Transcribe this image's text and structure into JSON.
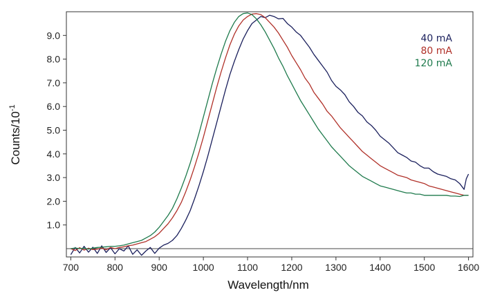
{
  "chart_data": {
    "type": "line",
    "xlabel": "Wavelength/nm",
    "ylabel_base": "Counts/10",
    "ylabel_exponent": "-1",
    "xlim": [
      690,
      1610
    ],
    "ylim": [
      -0.35,
      10.0
    ],
    "baseline": 0.0,
    "xticks": [
      700,
      800,
      900,
      1000,
      1100,
      1200,
      1300,
      1400,
      1500,
      1600
    ],
    "xtick_labels": [
      "700",
      "800",
      "900",
      "1000",
      "1100",
      "1200",
      "1300",
      "1400",
      "1500",
      "1600"
    ],
    "yticks": [
      1,
      2,
      3,
      4,
      5,
      6,
      7,
      8,
      9
    ],
    "ytick_labels": [
      "1.0",
      "2.0",
      "3.0",
      "4.0",
      "5.0",
      "6.0",
      "7.0",
      "8.0",
      "9.0"
    ],
    "grid": false,
    "legend_position": "top-right",
    "series": [
      {
        "name": "40 mA",
        "color": "#1a1f5c",
        "x": [
          700,
          710,
          720,
          730,
          740,
          750,
          760,
          770,
          780,
          790,
          800,
          810,
          820,
          830,
          840,
          850,
          860,
          870,
          880,
          890,
          900,
          910,
          920,
          930,
          940,
          950,
          960,
          970,
          980,
          990,
          1000,
          1010,
          1020,
          1030,
          1040,
          1050,
          1060,
          1070,
          1080,
          1090,
          1100,
          1110,
          1120,
          1130,
          1140,
          1150,
          1160,
          1170,
          1180,
          1190,
          1200,
          1210,
          1220,
          1230,
          1240,
          1250,
          1260,
          1270,
          1280,
          1290,
          1300,
          1310,
          1320,
          1330,
          1340,
          1350,
          1360,
          1370,
          1380,
          1390,
          1400,
          1410,
          1420,
          1430,
          1440,
          1450,
          1460,
          1470,
          1480,
          1490,
          1500,
          1510,
          1520,
          1530,
          1540,
          1550,
          1560,
          1570,
          1580,
          1590,
          1595,
          1600
        ],
        "y": [
          -0.25,
          0.05,
          -0.18,
          0.1,
          -0.15,
          0.06,
          -0.2,
          0.12,
          -0.16,
          0.04,
          -0.22,
          0.0,
          -0.1,
          0.12,
          -0.24,
          -0.05,
          -0.28,
          -0.1,
          0.05,
          -0.2,
          0.02,
          0.15,
          0.22,
          0.35,
          0.55,
          0.85,
          1.2,
          1.6,
          2.1,
          2.65,
          3.25,
          3.9,
          4.6,
          5.3,
          6.0,
          6.7,
          7.35,
          7.9,
          8.4,
          8.85,
          9.2,
          9.5,
          9.65,
          9.8,
          9.75,
          9.85,
          9.8,
          9.7,
          9.72,
          9.5,
          9.35,
          9.15,
          9.0,
          8.75,
          8.5,
          8.2,
          7.95,
          7.7,
          7.45,
          7.1,
          6.85,
          6.7,
          6.5,
          6.2,
          6.0,
          5.75,
          5.6,
          5.35,
          5.2,
          5.0,
          4.75,
          4.6,
          4.45,
          4.25,
          4.05,
          3.95,
          3.85,
          3.7,
          3.65,
          3.5,
          3.4,
          3.4,
          3.25,
          3.15,
          3.1,
          3.05,
          2.95,
          2.9,
          2.75,
          2.5,
          2.95,
          3.15
        ]
      },
      {
        "name": "80 mA",
        "color": "#b03028",
        "x": [
          700,
          710,
          720,
          730,
          740,
          750,
          760,
          770,
          780,
          790,
          800,
          810,
          820,
          830,
          840,
          850,
          860,
          870,
          880,
          890,
          900,
          910,
          920,
          930,
          940,
          950,
          960,
          970,
          980,
          990,
          1000,
          1010,
          1020,
          1030,
          1040,
          1050,
          1060,
          1070,
          1080,
          1090,
          1100,
          1110,
          1120,
          1130,
          1140,
          1150,
          1160,
          1170,
          1180,
          1190,
          1200,
          1210,
          1220,
          1230,
          1240,
          1250,
          1260,
          1270,
          1280,
          1290,
          1300,
          1310,
          1320,
          1330,
          1340,
          1350,
          1360,
          1370,
          1380,
          1390,
          1400,
          1410,
          1420,
          1430,
          1440,
          1450,
          1460,
          1470,
          1480,
          1490,
          1500,
          1510,
          1520,
          1530,
          1540,
          1550,
          1560,
          1570,
          1580,
          1590,
          1600
        ],
        "y": [
          0.0,
          -0.08,
          0.04,
          -0.06,
          0.02,
          -0.04,
          -0.02,
          0.03,
          -0.05,
          0.05,
          0.0,
          0.05,
          0.08,
          0.12,
          0.15,
          0.2,
          0.25,
          0.3,
          0.4,
          0.5,
          0.65,
          0.85,
          1.05,
          1.3,
          1.6,
          1.95,
          2.4,
          2.9,
          3.45,
          4.05,
          4.7,
          5.4,
          6.1,
          6.8,
          7.45,
          8.05,
          8.6,
          9.05,
          9.4,
          9.65,
          9.8,
          9.9,
          9.92,
          9.88,
          9.75,
          9.55,
          9.35,
          9.1,
          8.8,
          8.5,
          8.15,
          7.85,
          7.55,
          7.2,
          6.95,
          6.6,
          6.35,
          6.1,
          5.8,
          5.6,
          5.35,
          5.1,
          4.9,
          4.7,
          4.5,
          4.3,
          4.1,
          3.95,
          3.8,
          3.65,
          3.5,
          3.4,
          3.3,
          3.2,
          3.1,
          3.05,
          3.0,
          2.9,
          2.85,
          2.8,
          2.75,
          2.65,
          2.6,
          2.55,
          2.5,
          2.45,
          2.4,
          2.35,
          2.3,
          2.25,
          2.25
        ]
      },
      {
        "name": "120 mA",
        "color": "#1e7a4c",
        "x": [
          700,
          710,
          720,
          730,
          740,
          750,
          760,
          770,
          780,
          790,
          800,
          810,
          820,
          830,
          840,
          850,
          860,
          870,
          880,
          890,
          900,
          910,
          920,
          930,
          940,
          950,
          960,
          970,
          980,
          990,
          1000,
          1010,
          1020,
          1030,
          1040,
          1050,
          1060,
          1070,
          1080,
          1090,
          1100,
          1110,
          1120,
          1130,
          1140,
          1150,
          1160,
          1170,
          1180,
          1190,
          1200,
          1210,
          1220,
          1230,
          1240,
          1250,
          1260,
          1270,
          1280,
          1290,
          1300,
          1310,
          1320,
          1330,
          1340,
          1350,
          1360,
          1370,
          1380,
          1390,
          1400,
          1410,
          1420,
          1430,
          1440,
          1450,
          1460,
          1470,
          1480,
          1490,
          1500,
          1510,
          1520,
          1530,
          1540,
          1550,
          1560,
          1570,
          1580,
          1590,
          1600
        ],
        "y": [
          0.0,
          0.03,
          0.0,
          0.02,
          -0.02,
          0.02,
          0.05,
          0.06,
          0.08,
          0.1,
          0.1,
          0.12,
          0.15,
          0.2,
          0.25,
          0.3,
          0.35,
          0.45,
          0.55,
          0.7,
          0.9,
          1.15,
          1.4,
          1.7,
          2.1,
          2.55,
          3.05,
          3.6,
          4.2,
          4.85,
          5.55,
          6.25,
          6.95,
          7.6,
          8.2,
          8.75,
          9.2,
          9.55,
          9.8,
          9.92,
          9.95,
          9.88,
          9.7,
          9.45,
          9.15,
          8.8,
          8.45,
          8.05,
          7.7,
          7.3,
          6.95,
          6.6,
          6.25,
          5.95,
          5.65,
          5.35,
          5.05,
          4.8,
          4.55,
          4.3,
          4.1,
          3.9,
          3.7,
          3.5,
          3.35,
          3.2,
          3.05,
          2.95,
          2.85,
          2.75,
          2.65,
          2.6,
          2.55,
          2.5,
          2.45,
          2.4,
          2.35,
          2.35,
          2.3,
          2.3,
          2.25,
          2.25,
          2.25,
          2.25,
          2.25,
          2.25,
          2.22,
          2.22,
          2.2,
          2.25,
          2.25
        ]
      }
    ]
  }
}
